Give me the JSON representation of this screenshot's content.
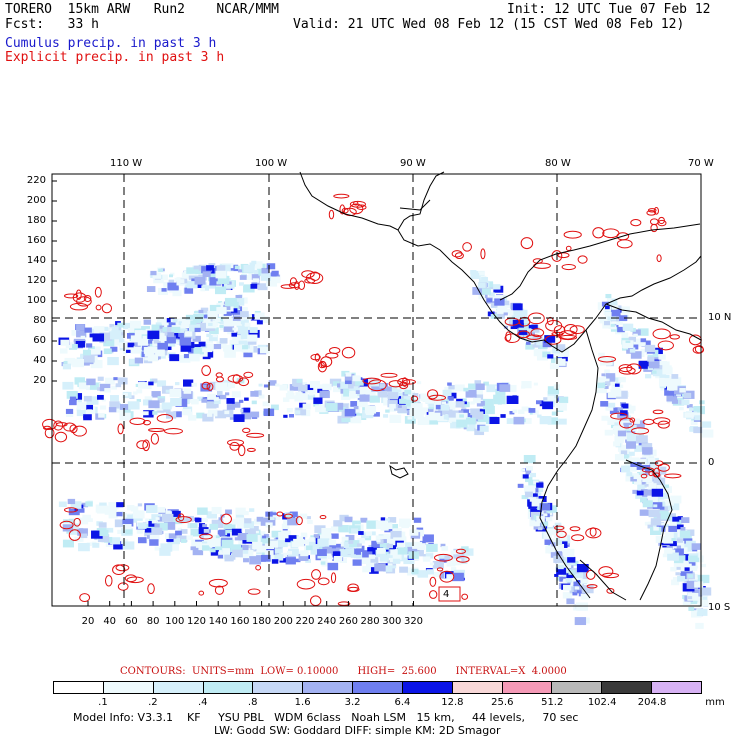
{
  "header": {
    "model_line": "TORERO  15km ARW   Run2    NCAR/MMM",
    "fcst_line": "Fcst:   33 h",
    "init_line": "Init: 12 UTC Tue 07 Feb 12",
    "valid_line": "Valid: 21 UTC Wed 08 Feb 12 (15 CST Wed 08 Feb 12)",
    "field_1": "Cumulus precip. in past 3 h",
    "field_2": "Explicit precip. in past 3 h"
  },
  "colors": {
    "field_1_text": "#1a1acc",
    "field_2_text": "#e01010",
    "contour": "#e01010",
    "coast": "#000000"
  },
  "map": {
    "top_lon_labels": [
      "110 W",
      "100 W",
      "90 W",
      "80 W",
      "70 W"
    ],
    "right_lat_labels": [
      "10 N",
      "0",
      "10 S"
    ],
    "left_y_ticks": [
      "220",
      "200",
      "180",
      "160",
      "140",
      "120",
      "100",
      "80",
      "60",
      "40",
      "20"
    ],
    "bottom_x_ticks": [
      "20",
      "40",
      "60",
      "80",
      "100",
      "120",
      "140",
      "160",
      "180",
      "200",
      "220",
      "240",
      "260",
      "280",
      "300",
      "320"
    ],
    "box_label": "4"
  },
  "legend": {
    "contours_note": "CONTOURS:  UNITS=mm  LOW= 0.10000      HIGH=  25.600      INTERVAL=X  4.0000",
    "thresholds": [
      ".1",
      ".2",
      ".4",
      ".8",
      "1.6",
      "3.2",
      "6.4",
      "12.8",
      "25.6",
      "51.2",
      "102.4",
      "204.8"
    ],
    "unit": "mm",
    "bin_colors": [
      "#ffffff",
      "#eefafd",
      "#d6f0fb",
      "#c0ecf4",
      "#c6d8f6",
      "#a3b2f2",
      "#6f7ff0",
      "#0b14e6",
      "#f8d8d8",
      "#f59ab7",
      "#b9b9b9",
      "#3a3a3a",
      "#d7b2f4"
    ]
  },
  "info": {
    "line_1": "Model Info: V3.3.1    KF     YSU PBL   WDM 6class   Noah LSM   15 km,     44 levels,     70 sec",
    "line_2": "LW: Godd SW: Goddard DIFF: simple KM: 2D Smagor"
  }
}
